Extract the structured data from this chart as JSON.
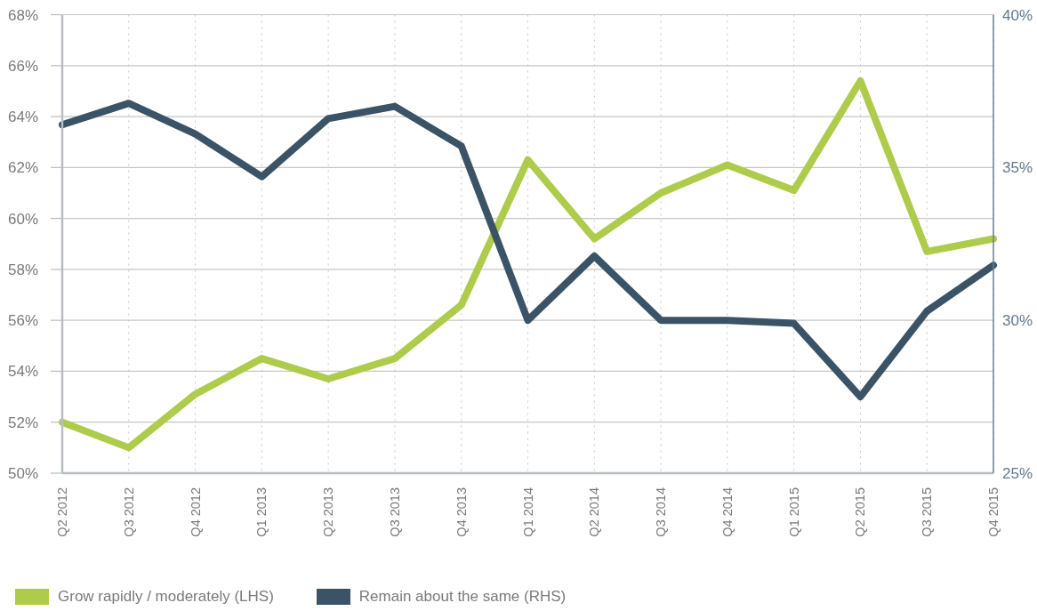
{
  "chart_data": {
    "type": "line",
    "categories": [
      "Q2 2012",
      "Q3 2012",
      "Q4 2012",
      "Q1 2013",
      "Q2 2013",
      "Q3 2013",
      "Q4 2013",
      "Q1 2014",
      "Q2 2014",
      "Q3 2014",
      "Q4 2014",
      "Q1 2015",
      "Q2 2015",
      "Q3 2015",
      "Q4 2015"
    ],
    "series": [
      {
        "name": "Grow rapidly / moderately (LHS)",
        "color": "#afcb4b",
        "values": [
          52.0,
          51.0,
          53.1,
          54.5,
          53.7,
          54.5,
          56.6,
          62.3,
          59.2,
          61.0,
          62.1,
          61.1,
          65.4,
          58.7,
          59.2
        ]
      },
      {
        "name": "Remain about the same (RHS)",
        "color": "#3b5366",
        "axis": "y2",
        "values": [
          36.4,
          37.1,
          36.1,
          34.7,
          36.6,
          37.0,
          35.7,
          30.0,
          32.1,
          30.0,
          30.0,
          29.9,
          27.5,
          30.3,
          31.8
        ]
      }
    ],
    "ylim": [
      50,
      68
    ],
    "yticks": [
      {
        "value": 50,
        "label": "50%"
      },
      {
        "value": 52,
        "label": "52%"
      },
      {
        "value": 54,
        "label": "54%"
      },
      {
        "value": 56,
        "label": "56%"
      },
      {
        "value": 58,
        "label": "58%"
      },
      {
        "value": 60,
        "label": "60%"
      },
      {
        "value": 62,
        "label": "62%"
      },
      {
        "value": 64,
        "label": "64%"
      },
      {
        "value": 66,
        "label": "66%"
      },
      {
        "value": 68,
        "label": "68%"
      }
    ],
    "y2lim": [
      25,
      40
    ],
    "y2ticks": [
      {
        "value": 25,
        "label": "25%"
      },
      {
        "value": 30,
        "label": "30%"
      },
      {
        "value": 35,
        "label": "35%"
      },
      {
        "value": 40,
        "label": "40%"
      }
    ],
    "grid": true,
    "legend": "bottom left",
    "marker": "none",
    "line_style": "solid"
  }
}
